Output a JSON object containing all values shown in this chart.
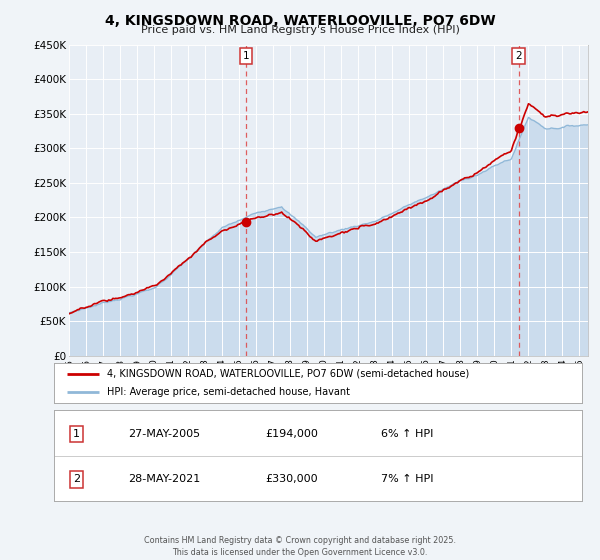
{
  "title": "4, KINGSDOWN ROAD, WATERLOOVILLE, PO7 6DW",
  "subtitle": "Price paid vs. HM Land Registry's House Price Index (HPI)",
  "bg_color": "#f0f4f8",
  "plot_bg_color": "#e8eef5",
  "grid_color": "#ffffff",
  "hpi_color": "#90b8d8",
  "hpi_fill_color": "#b8d0e8",
  "price_color": "#cc0000",
  "marker_color": "#cc0000",
  "vline_color": "#dd4444",
  "ylim": [
    0,
    450000
  ],
  "yticks": [
    0,
    50000,
    100000,
    150000,
    200000,
    250000,
    300000,
    350000,
    400000,
    450000
  ],
  "ytick_labels": [
    "£0",
    "£50K",
    "£100K",
    "£150K",
    "£200K",
    "£250K",
    "£300K",
    "£350K",
    "£400K",
    "£450K"
  ],
  "xlim": [
    1995,
    2025.5
  ],
  "xtick_years": [
    1995,
    1996,
    1997,
    1998,
    1999,
    2000,
    2001,
    2002,
    2003,
    2004,
    2005,
    2006,
    2007,
    2008,
    2009,
    2010,
    2011,
    2012,
    2013,
    2014,
    2015,
    2016,
    2017,
    2018,
    2019,
    2020,
    2021,
    2022,
    2023,
    2024,
    2025
  ],
  "sale1_date": 2005.4,
  "sale1_price": 194000,
  "sale2_date": 2021.4,
  "sale2_price": 330000,
  "legend_entries": [
    "4, KINGSDOWN ROAD, WATERLOOVILLE, PO7 6DW (semi-detached house)",
    "HPI: Average price, semi-detached house, Havant"
  ],
  "footer_text": "Contains HM Land Registry data © Crown copyright and database right 2025.\nThis data is licensed under the Open Government Licence v3.0.",
  "table_data": [
    [
      "1",
      "27-MAY-2005",
      "£194,000",
      "6% ↑ HPI"
    ],
    [
      "2",
      "28-MAY-2021",
      "£330,000",
      "7% ↑ HPI"
    ]
  ]
}
